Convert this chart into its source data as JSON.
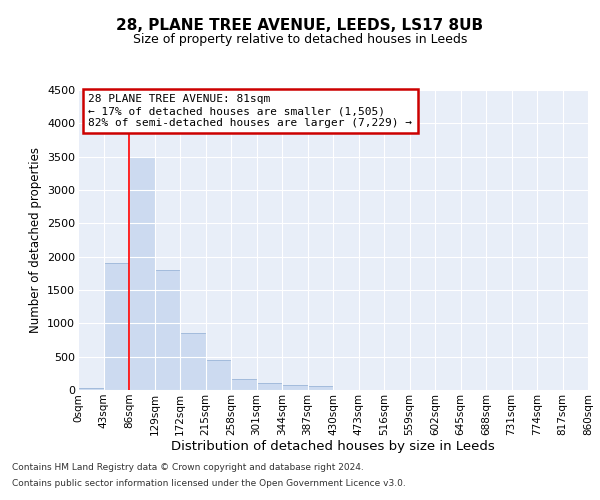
{
  "title": "28, PLANE TREE AVENUE, LEEDS, LS17 8UB",
  "subtitle": "Size of property relative to detached houses in Leeds",
  "xlabel": "Distribution of detached houses by size in Leeds",
  "ylabel": "Number of detached properties",
  "bar_values": [
    30,
    1900,
    3500,
    1800,
    850,
    450,
    160,
    100,
    70,
    55,
    0,
    0,
    0,
    0,
    0,
    0,
    0,
    0,
    0,
    0
  ],
  "bar_labels": [
    "0sqm",
    "43sqm",
    "86sqm",
    "129sqm",
    "172sqm",
    "215sqm",
    "258sqm",
    "301sqm",
    "344sqm",
    "387sqm",
    "430sqm",
    "473sqm",
    "516sqm",
    "559sqm",
    "602sqm",
    "645sqm",
    "688sqm",
    "731sqm",
    "774sqm",
    "817sqm",
    "860sqm"
  ],
  "bar_color": "#ccdaf0",
  "bar_edge_color": "#9ab5d8",
  "red_line_x": 2.0,
  "ylim": [
    0,
    4500
  ],
  "yticks": [
    0,
    500,
    1000,
    1500,
    2000,
    2500,
    3000,
    3500,
    4000,
    4500
  ],
  "annotation_title": "28 PLANE TREE AVENUE: 81sqm",
  "annotation_line1": "← 17% of detached houses are smaller (1,505)",
  "annotation_line2": "82% of semi-detached houses are larger (7,229) →",
  "annotation_box_color": "#ffffff",
  "annotation_box_edge": "#cc0000",
  "footer1": "Contains HM Land Registry data © Crown copyright and database right 2024.",
  "footer2": "Contains public sector information licensed under the Open Government Licence v3.0.",
  "background_color": "#e8eef8",
  "grid_color": "#ffffff",
  "fig_bg": "#ffffff"
}
